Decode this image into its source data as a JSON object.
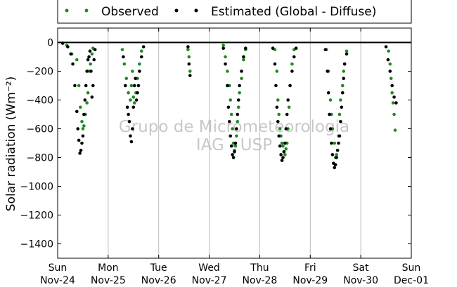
{
  "chart_data": {
    "type": "scatter",
    "ylabel": "Solar radiation (Wm⁻²)",
    "ylim": [
      -1500,
      100
    ],
    "yticks": [
      0,
      -200,
      -400,
      -600,
      -800,
      -1000,
      -1200,
      -1400
    ],
    "xlim": [
      0,
      7
    ],
    "xticks": [
      {
        "x": 0,
        "weekday": "Sun",
        "date": "Nov-24"
      },
      {
        "x": 1,
        "weekday": "Mon",
        "date": "Nov-25"
      },
      {
        "x": 2,
        "weekday": "Tue",
        "date": "Nov-26"
      },
      {
        "x": 3,
        "weekday": "Wed",
        "date": "Nov-27"
      },
      {
        "x": 4,
        "weekday": "Thu",
        "date": "Nov-28"
      },
      {
        "x": 5,
        "weekday": "Fri",
        "date": "Nov-29"
      },
      {
        "x": 6,
        "weekday": "Sat",
        "date": "Nov-30"
      },
      {
        "x": 7,
        "weekday": "Sun",
        "date": "Dec-01"
      }
    ],
    "grid": "vertical",
    "legend_position": "top-outside",
    "watermark": [
      "Grupo de Micrometeorologia",
      "IAG - USP"
    ],
    "series": [
      {
        "name": "Observed",
        "color": "#228b22",
        "points": [
          [
            0.1,
            -5
          ],
          [
            0.18,
            -20
          ],
          [
            0.28,
            -80
          ],
          [
            0.38,
            -120
          ],
          [
            0.42,
            -300
          ],
          [
            0.45,
            -450
          ],
          [
            0.48,
            -550
          ],
          [
            0.5,
            -600
          ],
          [
            0.52,
            -580
          ],
          [
            0.55,
            -500
          ],
          [
            0.58,
            -420
          ],
          [
            0.6,
            -350
          ],
          [
            0.62,
            -200
          ],
          [
            0.65,
            -150
          ],
          [
            0.68,
            -80
          ],
          [
            0.7,
            -40
          ],
          [
            1.28,
            -50
          ],
          [
            1.32,
            -150
          ],
          [
            1.36,
            -250
          ],
          [
            1.4,
            -350
          ],
          [
            1.44,
            -400
          ],
          [
            1.46,
            -300
          ],
          [
            1.48,
            -200
          ],
          [
            1.5,
            -380
          ],
          [
            1.52,
            -420
          ],
          [
            1.55,
            -350
          ],
          [
            1.58,
            -250
          ],
          [
            1.62,
            -150
          ],
          [
            1.66,
            -60
          ],
          [
            2.58,
            -50
          ],
          [
            2.6,
            -100
          ],
          [
            2.62,
            -200
          ],
          [
            3.28,
            -20
          ],
          [
            3.32,
            -100
          ],
          [
            3.36,
            -200
          ],
          [
            3.4,
            -300
          ],
          [
            3.42,
            -400
          ],
          [
            3.44,
            -500
          ],
          [
            3.46,
            -600
          ],
          [
            3.48,
            -700
          ],
          [
            3.5,
            -750
          ],
          [
            3.52,
            -720
          ],
          [
            3.54,
            -650
          ],
          [
            3.56,
            -550
          ],
          [
            3.58,
            -450
          ],
          [
            3.6,
            -350
          ],
          [
            3.64,
            -250
          ],
          [
            3.68,
            -120
          ],
          [
            3.72,
            -50
          ],
          [
            4.3,
            -50
          ],
          [
            4.34,
            -200
          ],
          [
            4.36,
            -400
          ],
          [
            4.38,
            -500
          ],
          [
            4.4,
            -600
          ],
          [
            4.42,
            -650
          ],
          [
            4.44,
            -700
          ],
          [
            4.46,
            -720
          ],
          [
            4.48,
            -760
          ],
          [
            4.5,
            -780
          ],
          [
            4.52,
            -740
          ],
          [
            4.54,
            -700
          ],
          [
            4.56,
            -600
          ],
          [
            4.58,
            -450
          ],
          [
            4.6,
            -300
          ],
          [
            4.64,
            -150
          ],
          [
            4.68,
            -50
          ],
          [
            5.32,
            -50
          ],
          [
            5.36,
            -200
          ],
          [
            5.4,
            -400
          ],
          [
            5.42,
            -500
          ],
          [
            5.44,
            -600
          ],
          [
            5.48,
            -700
          ],
          [
            5.5,
            -800
          ],
          [
            5.52,
            -780
          ],
          [
            5.56,
            -650
          ],
          [
            5.58,
            -500
          ],
          [
            5.6,
            -400
          ],
          [
            5.64,
            -300
          ],
          [
            5.66,
            -200
          ],
          [
            5.68,
            -150
          ],
          [
            5.72,
            -60
          ],
          [
            6.55,
            -60
          ],
          [
            6.58,
            -150
          ],
          [
            6.6,
            -250
          ],
          [
            6.62,
            -350
          ],
          [
            6.64,
            -420
          ],
          [
            6.66,
            -500
          ],
          [
            6.68,
            -610
          ]
        ]
      },
      {
        "name": "Estimated (Global - Diffuse)",
        "color": "#000000",
        "points": [
          [
            0.1,
            -5
          ],
          [
            0.2,
            -30
          ],
          [
            0.26,
            -80
          ],
          [
            0.3,
            -150
          ],
          [
            0.34,
            -300
          ],
          [
            0.38,
            -480
          ],
          [
            0.4,
            -600
          ],
          [
            0.42,
            -680
          ],
          [
            0.44,
            -770
          ],
          [
            0.46,
            -750
          ],
          [
            0.48,
            -700
          ],
          [
            0.5,
            -650
          ],
          [
            0.52,
            -500
          ],
          [
            0.54,
            -400
          ],
          [
            0.56,
            -300
          ],
          [
            0.58,
            -200
          ],
          [
            0.6,
            -120
          ],
          [
            0.62,
            -100
          ],
          [
            0.64,
            -60
          ],
          [
            0.66,
            -200
          ],
          [
            0.68,
            -380
          ],
          [
            0.7,
            -300
          ],
          [
            0.72,
            -120
          ],
          [
            0.74,
            -50
          ],
          [
            1.3,
            -100
          ],
          [
            1.34,
            -300
          ],
          [
            1.38,
            -450
          ],
          [
            1.4,
            -500
          ],
          [
            1.42,
            -550
          ],
          [
            1.44,
            -650
          ],
          [
            1.46,
            -690
          ],
          [
            1.48,
            -600
          ],
          [
            1.5,
            -450
          ],
          [
            1.52,
            -300
          ],
          [
            1.54,
            -250
          ],
          [
            1.56,
            -400
          ],
          [
            1.58,
            -350
          ],
          [
            1.6,
            -300
          ],
          [
            1.62,
            -200
          ],
          [
            1.66,
            -100
          ],
          [
            1.7,
            -30
          ],
          [
            2.58,
            -30
          ],
          [
            2.6,
            -150
          ],
          [
            2.62,
            -230
          ],
          [
            3.28,
            -40
          ],
          [
            3.32,
            -150
          ],
          [
            3.36,
            -300
          ],
          [
            3.38,
            -450
          ],
          [
            3.4,
            -550
          ],
          [
            3.42,
            -650
          ],
          [
            3.44,
            -720
          ],
          [
            3.46,
            -780
          ],
          [
            3.48,
            -800
          ],
          [
            3.5,
            -760
          ],
          [
            3.52,
            -700
          ],
          [
            3.54,
            -600
          ],
          [
            3.56,
            -500
          ],
          [
            3.58,
            -400
          ],
          [
            3.6,
            -300
          ],
          [
            3.64,
            -200
          ],
          [
            3.68,
            -100
          ],
          [
            3.72,
            -40
          ],
          [
            4.26,
            -40
          ],
          [
            4.3,
            -150
          ],
          [
            4.32,
            -300
          ],
          [
            4.34,
            -450
          ],
          [
            4.36,
            -550
          ],
          [
            4.38,
            -650
          ],
          [
            4.4,
            -720
          ],
          [
            4.42,
            -780
          ],
          [
            4.44,
            -820
          ],
          [
            4.46,
            -800
          ],
          [
            4.48,
            -760
          ],
          [
            4.5,
            -700
          ],
          [
            4.52,
            -600
          ],
          [
            4.54,
            -500
          ],
          [
            4.56,
            -400
          ],
          [
            4.6,
            -300
          ],
          [
            4.64,
            -200
          ],
          [
            4.68,
            -100
          ],
          [
            4.72,
            -40
          ],
          [
            5.3,
            -50
          ],
          [
            5.34,
            -200
          ],
          [
            5.36,
            -350
          ],
          [
            5.38,
            -500
          ],
          [
            5.4,
            -600
          ],
          [
            5.42,
            -700
          ],
          [
            5.44,
            -780
          ],
          [
            5.46,
            -840
          ],
          [
            5.48,
            -870
          ],
          [
            5.5,
            -850
          ],
          [
            5.52,
            -800
          ],
          [
            5.54,
            -750
          ],
          [
            5.56,
            -700
          ],
          [
            5.58,
            -650
          ],
          [
            5.6,
            -550
          ],
          [
            5.62,
            -450
          ],
          [
            5.64,
            -350
          ],
          [
            5.66,
            -250
          ],
          [
            5.68,
            -150
          ],
          [
            5.72,
            -80
          ],
          [
            6.5,
            -30
          ],
          [
            6.54,
            -120
          ],
          [
            6.58,
            -200
          ],
          [
            6.62,
            -300
          ],
          [
            6.66,
            -380
          ],
          [
            6.7,
            -420
          ]
        ]
      }
    ]
  }
}
